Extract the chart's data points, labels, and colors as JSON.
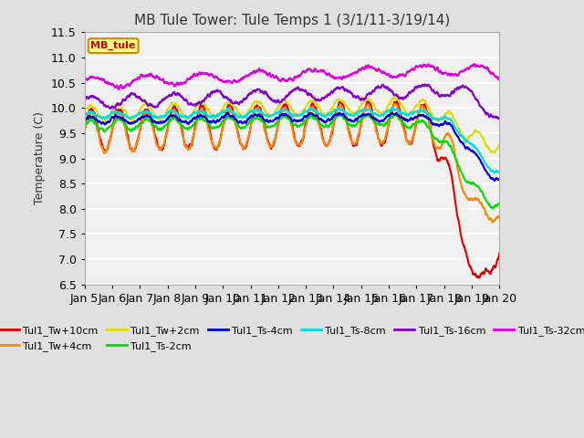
{
  "title": "MB Tule Tower: Tule Temps 1 (3/1/11-3/19/14)",
  "ylabel": "Temperature (C)",
  "ylim": [
    6.5,
    11.5
  ],
  "yticks": [
    6.5,
    7.0,
    7.5,
    8.0,
    8.5,
    9.0,
    9.5,
    10.0,
    10.5,
    11.0,
    11.5
  ],
  "xtick_labels": [
    "Jan 5",
    "Jan 6",
    "Jan 7",
    "Jan 8",
    "Jan 9",
    "Jan 10",
    "Jan 11",
    "Jan 12",
    "Jan 13",
    "Jan 14",
    "Jan 15",
    "Jan 16",
    "Jan 17",
    "Jan 18",
    "Jan 19",
    "Jan 20"
  ],
  "legend_label": "MB_tule",
  "series_labels": [
    "Tul1_Tw+10cm",
    "Tul1_Tw+4cm",
    "Tul1_Tw+2cm",
    "Tul1_Ts-2cm",
    "Tul1_Ts-4cm",
    "Tul1_Ts-8cm",
    "Tul1_Ts-16cm",
    "Tul1_Ts-32cm"
  ],
  "series_colors": [
    "#dd0000",
    "#ff8800",
    "#dddd00",
    "#00dd00",
    "#0000dd",
    "#00dddd",
    "#8800cc",
    "#dd00dd"
  ],
  "background_color": "#e0e0e0",
  "plot_bg_color": "#f0f0f0",
  "grid_color": "#ffffff",
  "title_fontsize": 11,
  "axis_fontsize": 9,
  "legend_fontsize": 8,
  "figsize": [
    6.4,
    4.8
  ],
  "dpi": 100
}
